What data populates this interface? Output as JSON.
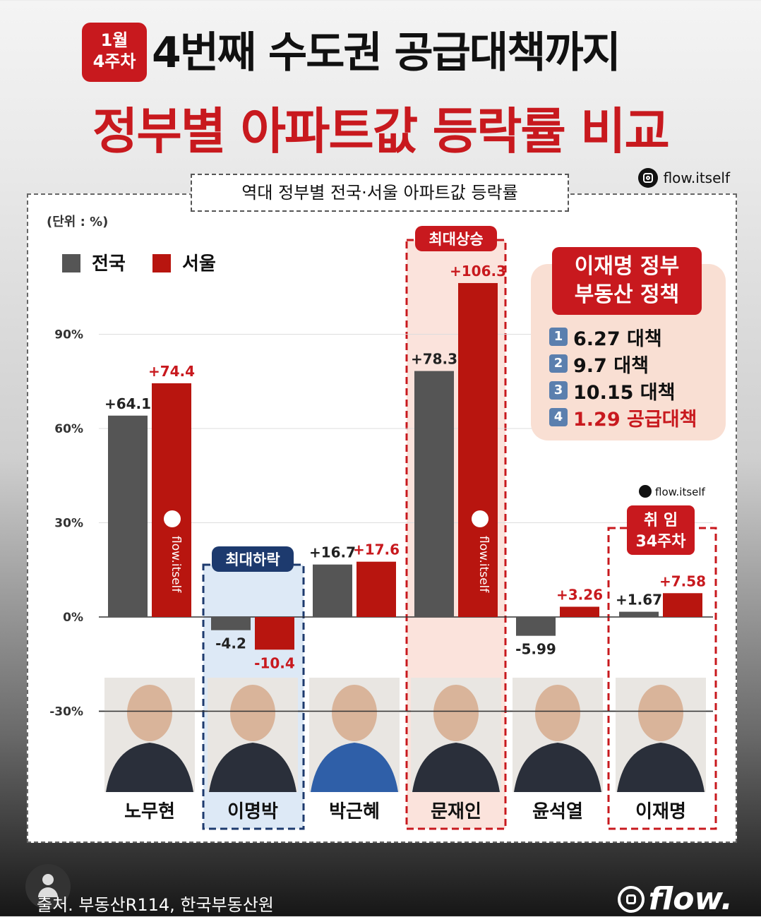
{
  "header": {
    "badge_line1": "1월",
    "badge_line2": "4주차",
    "title_line1": "4번째 수도권 공급대책까지",
    "title_line2": "정부별 아파트값 등락률 비교"
  },
  "brand": {
    "instagram_handle": "flow.itself",
    "logo_text": "flow."
  },
  "chart_data": {
    "type": "bar",
    "title": "역대 정부별 전국·서울 아파트값 등락률",
    "unit_label": "(단위 : %)",
    "categories": [
      "노무현",
      "이명박",
      "박근혜",
      "문재인",
      "윤석열",
      "이재명"
    ],
    "series": [
      {
        "name": "전국",
        "color": "#555555",
        "values": [
          64.1,
          -4.2,
          16.7,
          78.3,
          -5.99,
          1.67
        ],
        "labels": [
          "+64.1",
          "-4.2",
          "+16.7",
          "+78.3",
          "-5.99",
          "+1.67"
        ]
      },
      {
        "name": "서울",
        "color": "#b8150f",
        "values": [
          74.4,
          -10.4,
          17.6,
          106.3,
          3.26,
          7.58
        ],
        "labels": [
          "+74.4",
          "-10.4",
          "+17.6",
          "+106.3",
          "+3.26",
          "+7.58"
        ]
      }
    ],
    "yticks": [
      "90%",
      "60%",
      "30%",
      "0%",
      "-30%"
    ],
    "ytick_values": [
      90,
      60,
      30,
      0,
      -30
    ],
    "ylim": [
      -30,
      106.3
    ],
    "legend": "top-left",
    "grid": true,
    "annotations": {
      "max_rise": "최대상승",
      "max_fall": "최대하락",
      "tenure_line1": "취  임",
      "tenure_line2": "34주차"
    }
  },
  "policy_box": {
    "title_line1": "이재명 정부",
    "title_line2": "부동산 정책",
    "items": [
      {
        "num": "1",
        "label": "6.27 대책",
        "color": "#111111"
      },
      {
        "num": "2",
        "label": "9.7 대책",
        "color": "#111111"
      },
      {
        "num": "3",
        "label": "10.15 대책",
        "color": "#111111"
      },
      {
        "num": "4",
        "label": "1.29 공급대책",
        "color": "#c8191e"
      }
    ]
  },
  "footer": {
    "source": "출처. 부동산R114, 한국부동산원"
  }
}
